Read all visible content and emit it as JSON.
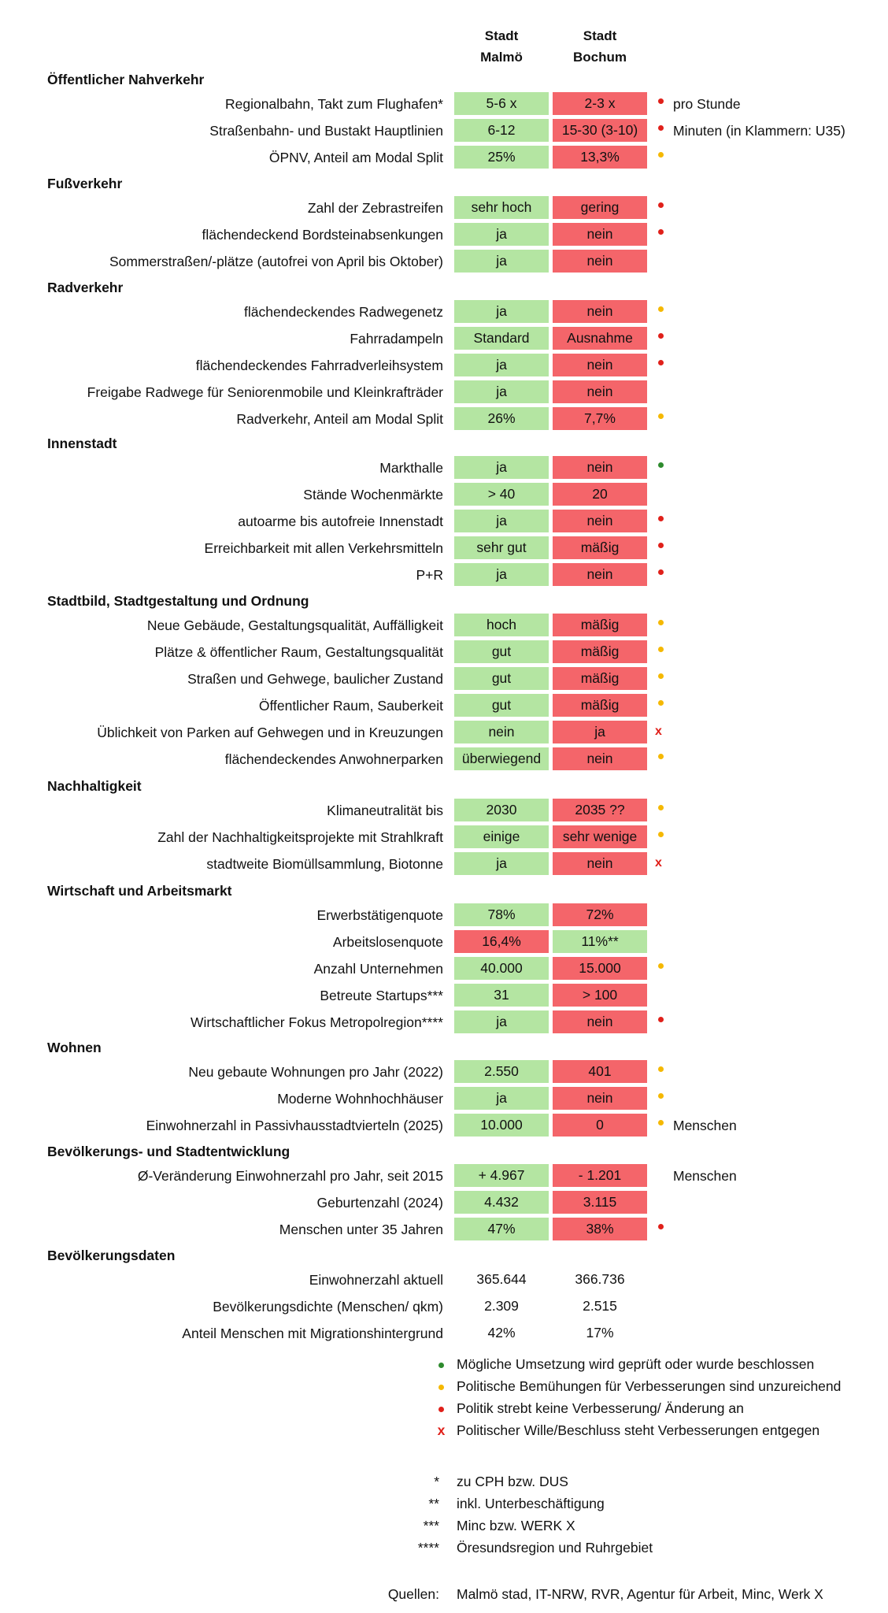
{
  "header": {
    "col1": "Stadt\nMalmö",
    "col2": "Stadt\nBochum"
  },
  "colors": {
    "green": "#b4e5a2",
    "red": "#f4656a",
    "dot_green": "#2e8b2e",
    "dot_yellow": "#f5b800",
    "dot_red": "#e0201a",
    "x_red": "#e0201a"
  },
  "sections": [
    {
      "title": "Öffentlicher Nahverkehr",
      "rows": [
        {
          "label": "Regionalbahn, Takt zum Flughafen*",
          "v1": "5-6 x",
          "c1": "green",
          "v2": "2-3 x",
          "c2": "red",
          "mark": "red",
          "note": "pro Stunde"
        },
        {
          "label": "Straßenbahn- und Bustakt Hauptlinien",
          "v1": "6-12",
          "c1": "green",
          "v2": "15-30 (3-10)",
          "c2": "red",
          "mark": "red",
          "note": "Minuten (in Klammern: U35)"
        },
        {
          "label": "ÖPNV, Anteil am Modal Split",
          "v1": "25%",
          "c1": "green",
          "v2": "13,3%",
          "c2": "red",
          "mark": "yellow",
          "note": ""
        }
      ]
    },
    {
      "title": "Fußverkehr",
      "rows": [
        {
          "label": "Zahl der Zebrastreifen",
          "v1": "sehr hoch",
          "c1": "green",
          "v2": "gering",
          "c2": "red",
          "mark": "red",
          "note": ""
        },
        {
          "label": "flächendeckend Bordsteinabsenkungen",
          "v1": "ja",
          "c1": "green",
          "v2": "nein",
          "c2": "red",
          "mark": "red",
          "note": ""
        },
        {
          "label": "Sommerstraßen/-plätze (autofrei von April bis Oktober)",
          "v1": "ja",
          "c1": "green",
          "v2": "nein",
          "c2": "red",
          "mark": "",
          "note": ""
        }
      ]
    },
    {
      "title": "Radverkehr",
      "rows": [
        {
          "label": "flächendeckendes Radwegenetz",
          "v1": "ja",
          "c1": "green",
          "v2": "nein",
          "c2": "red",
          "mark": "yellow",
          "note": ""
        },
        {
          "label": "Fahrradampeln",
          "v1": "Standard",
          "c1": "green",
          "v2": "Ausnahme",
          "c2": "red",
          "mark": "red",
          "note": ""
        },
        {
          "label": "flächendeckendes Fahrradverleihsystem",
          "v1": "ja",
          "c1": "green",
          "v2": "nein",
          "c2": "red",
          "mark": "red",
          "note": ""
        },
        {
          "label": "Freigabe Radwege für Seniorenmobile und Kleinkrafträder",
          "v1": "ja",
          "c1": "green",
          "v2": "nein",
          "c2": "red",
          "mark": "",
          "note": ""
        },
        {
          "label": "Radverkehr, Anteil am Modal Split",
          "v1": "26%",
          "c1": "green",
          "v2": "7,7%",
          "c2": "red",
          "mark": "yellow",
          "note": ""
        }
      ]
    },
    {
      "title": "Innenstadt",
      "rows": [
        {
          "label": "Markthalle",
          "v1": "ja",
          "c1": "green",
          "v2": "nein",
          "c2": "red",
          "mark": "green",
          "note": ""
        },
        {
          "label": "Stände Wochenmärkte",
          "v1": "> 40",
          "c1": "green",
          "v2": "20",
          "c2": "red",
          "mark": "",
          "note": ""
        },
        {
          "label": "autoarme bis autofreie Innenstadt",
          "v1": "ja",
          "c1": "green",
          "v2": "nein",
          "c2": "red",
          "mark": "red",
          "note": ""
        },
        {
          "label": "Erreichbarkeit mit allen Verkehrsmitteln",
          "v1": "sehr gut",
          "c1": "green",
          "v2": "mäßig",
          "c2": "red",
          "mark": "red",
          "note": ""
        },
        {
          "label": "P+R",
          "v1": "ja",
          "c1": "green",
          "v2": "nein",
          "c2": "red",
          "mark": "red",
          "note": ""
        }
      ]
    },
    {
      "title": "Stadtbild, Stadtgestaltung und Ordnung",
      "rows": [
        {
          "label": "Neue Gebäude, Gestaltungsqualität, Auffälligkeit",
          "v1": "hoch",
          "c1": "green",
          "v2": "mäßig",
          "c2": "red",
          "mark": "yellow",
          "note": ""
        },
        {
          "label": "Plätze & öffentlicher Raum, Gestaltungsqualität",
          "v1": "gut",
          "c1": "green",
          "v2": "mäßig",
          "c2": "red",
          "mark": "yellow",
          "note": ""
        },
        {
          "label": "Straßen und Gehwege, baulicher Zustand",
          "v1": "gut",
          "c1": "green",
          "v2": "mäßig",
          "c2": "red",
          "mark": "yellow",
          "note": ""
        },
        {
          "label": "Öffentlicher Raum, Sauberkeit",
          "v1": "gut",
          "c1": "green",
          "v2": "mäßig",
          "c2": "red",
          "mark": "yellow",
          "note": ""
        },
        {
          "label": "Üblichkeit von Parken auf Gehwegen und in Kreuzungen",
          "v1": "nein",
          "c1": "green",
          "v2": "ja",
          "c2": "red",
          "mark": "x",
          "note": ""
        },
        {
          "label": "flächendeckendes Anwohnerparken",
          "v1": "überwiegend",
          "c1": "green",
          "v2": "nein",
          "c2": "red",
          "mark": "yellow",
          "note": ""
        }
      ]
    },
    {
      "title": "Nachhaltigkeit",
      "rows": [
        {
          "label": "Klimaneutralität bis",
          "v1": "2030",
          "c1": "green",
          "v2": "2035 ??",
          "c2": "red",
          "mark": "yellow",
          "note": ""
        },
        {
          "label": "Zahl der Nachhaltigkeitsprojekte mit Strahlkraft",
          "v1": "einige",
          "c1": "green",
          "v2": "sehr wenige",
          "c2": "red",
          "mark": "yellow",
          "note": ""
        },
        {
          "label": "stadtweite Biomüllsammlung, Biotonne",
          "v1": "ja",
          "c1": "green",
          "v2": "nein",
          "c2": "red",
          "mark": "x",
          "note": ""
        }
      ]
    },
    {
      "title": "Wirtschaft und Arbeitsmarkt",
      "rows": [
        {
          "label": "Erwerbstätigenquote",
          "v1": "78%",
          "c1": "green",
          "v2": "72%",
          "c2": "red",
          "mark": "",
          "note": ""
        },
        {
          "label": "Arbeitslosenquote",
          "v1": "16,4%",
          "c1": "red",
          "v2": "11%**",
          "c2": "green",
          "mark": "",
          "note": ""
        },
        {
          "label": "Anzahl Unternehmen",
          "v1": "40.000",
          "c1": "green",
          "v2": "15.000",
          "c2": "red",
          "mark": "yellow",
          "note": ""
        },
        {
          "label": "Betreute Startups***",
          "v1": "31",
          "c1": "green",
          "v2": "> 100",
          "c2": "red",
          "mark": "",
          "note": ""
        },
        {
          "label": "Wirtschaftlicher Fokus Metropolregion****",
          "v1": "ja",
          "c1": "green",
          "v2": "nein",
          "c2": "red",
          "mark": "red",
          "note": ""
        }
      ]
    },
    {
      "title": "Wohnen",
      "rows": [
        {
          "label": "Neu gebaute Wohnungen pro Jahr (2022)",
          "v1": "2.550",
          "c1": "green",
          "v2": "401",
          "c2": "red",
          "mark": "yellow",
          "note": ""
        },
        {
          "label": "Moderne Wohnhochhäuser",
          "v1": "ja",
          "c1": "green",
          "v2": "nein",
          "c2": "red",
          "mark": "yellow",
          "note": ""
        },
        {
          "label": "Einwohnerzahl in Passivhausstadtvierteln (2025)",
          "v1": "10.000",
          "c1": "green",
          "v2": "0",
          "c2": "red",
          "mark": "yellow",
          "note": "Menschen"
        }
      ]
    },
    {
      "title": "Bevölkerungs- und Stadtentwicklung",
      "rows": [
        {
          "label": "Ø-Veränderung Einwohnerzahl pro Jahr, seit 2015",
          "v1": "+ 4.967",
          "c1": "green",
          "v2": "- 1.201",
          "c2": "red",
          "mark": "",
          "note": "Menschen"
        },
        {
          "label": "Geburtenzahl (2024)",
          "v1": "4.432",
          "c1": "green",
          "v2": "3.115",
          "c2": "red",
          "mark": "",
          "note": ""
        },
        {
          "label": "Menschen unter 35 Jahren",
          "v1": "47%",
          "c1": "green",
          "v2": "38%",
          "c2": "red",
          "mark": "red",
          "note": ""
        }
      ]
    },
    {
      "title": "Bevölkerungsdaten",
      "rows": [
        {
          "label": "Einwohnerzahl aktuell",
          "v1": "365.644",
          "c1": "plain",
          "v2": "366.736",
          "c2": "plain",
          "mark": "",
          "note": ""
        },
        {
          "label": "Bevölkerungsdichte (Menschen/ qkm)",
          "v1": "2.309",
          "c1": "plain",
          "v2": "2.515",
          "c2": "plain",
          "mark": "",
          "note": ""
        },
        {
          "label": "Anteil Menschen mit Migrationshintergrund",
          "v1": "42%",
          "c1": "plain",
          "v2": "17%",
          "c2": "plain",
          "mark": "",
          "note": ""
        }
      ]
    }
  ],
  "legend": [
    {
      "mark": "green",
      "text": "Mögliche Umsetzung wird geprüft oder wurde beschlossen"
    },
    {
      "mark": "yellow",
      "text": "Politische Bemühungen für  Verbesserungen sind unzureichend"
    },
    {
      "mark": "red",
      "text": "Politik strebt keine Verbesserung/ Änderung an"
    },
    {
      "mark": "x",
      "text": "Politischer Wille/Beschluss steht Verbesserungen entgegen"
    }
  ],
  "footnotes": [
    {
      "sym": "*",
      "text": "zu CPH bzw. DUS"
    },
    {
      "sym": "**",
      "text": "inkl. Unterbeschäftigung"
    },
    {
      "sym": "***",
      "text": "Minc bzw. WERK X"
    },
    {
      "sym": "****",
      "text": "Öresundsregion und Ruhrgebiet"
    }
  ],
  "sources": {
    "label": "Quellen:",
    "text": "Malmö stad, IT-NRW, RVR, Agentur für Arbeit, Minc, Werk X"
  }
}
